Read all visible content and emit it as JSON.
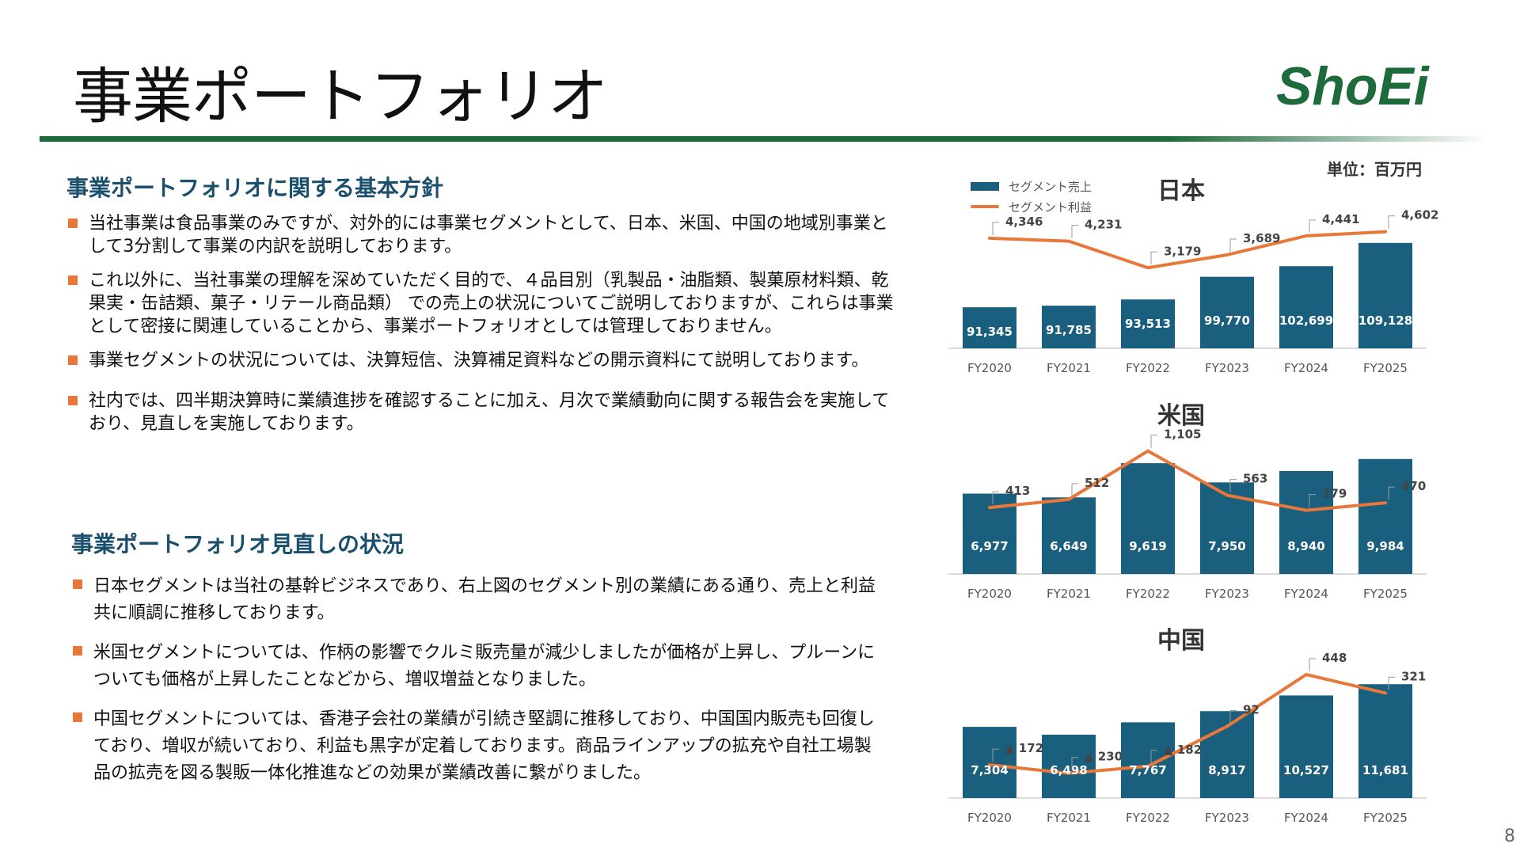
{
  "page": {
    "title": "事業ポートフォリオ",
    "logo_text": "ShoEi",
    "unit_label": "単位：百万円",
    "page_number": "8",
    "colors": {
      "accent_green": "#1d6b3a",
      "bar_blue": "#1b5f7e",
      "line_orange": "#e8773a",
      "heading_navy": "#1b4f6e"
    }
  },
  "section1": {
    "heading": "事業ポートフォリオに関する基本方針",
    "bullets": [
      "当社事業は食品事業のみですが、対外的には事業セグメントとして、日本、米国、中国の地域別事業として3分割して事業の内訳を説明しております。",
      "これ以外に、当社事業の理解を深めていただく目的で、４品目別（乳製品・油脂類、製菓原材料類、乾果実・缶詰類、菓子・リテール商品類） での売上の状況についてご説明しておりますが、これらは事業として密接に関連していることから、事業ポートフォリオとしては管理しておりません。",
      "事業セグメントの状況については、決算短信、決算補足資料などの開示資料にて説明しております。",
      "社内では、四半期決算時に業績進捗を確認することに加え、月次で業績動向に関する報告会を実施しており、見直しを実施しております。"
    ]
  },
  "section2": {
    "heading": "事業ポートフォリオ見直しの状況",
    "bullets": [
      "日本セグメントは当社の基幹ビジネスであり、右上図のセグメント別の業績にある通り、売上と利益共に順調に推移しております。",
      "米国セグメントについては、作柄の影響でクルミ販売量が減少しましたが価格が上昇し、プルーンについても価格が上昇したことなどから、増収増益となりました。",
      "中国セグメントについては、香港子会社の業績が引続き堅調に推移しており、中国国内販売も回復しており、増収が続いており、利益も黒字が定着しております。商品ラインアップの拡充や自社工場製品の拡売を図る製販一体化推進などの効果が業績改善に繋がりました。"
    ]
  },
  "legend": {
    "bar": "セグメント売上",
    "line": "セグメント利益"
  },
  "chart_data": [
    {
      "type": "bar",
      "title": "日本",
      "categories": [
        "FY2020",
        "FY2021",
        "FY2022",
        "FY2023",
        "FY2024",
        "FY2025"
      ],
      "series": [
        {
          "name": "セグメント売上",
          "type": "bar",
          "values": [
            91345,
            91785,
            93513,
            99770,
            102699,
            109128
          ],
          "labels": [
            "91,345",
            "91,785",
            "93,513",
            "99,770",
            "102,699",
            "109,128"
          ]
        },
        {
          "name": "セグメント利益",
          "type": "line",
          "values": [
            4346,
            4231,
            3179,
            3689,
            4441,
            4602
          ],
          "labels": [
            "4,346",
            "4,231",
            "3,179",
            "3,689",
            "4,441",
            "4,602"
          ]
        }
      ],
      "bar_axis_range": [
        80000,
        115000
      ],
      "line_axis_range": [
        0,
        5000
      ]
    },
    {
      "type": "bar",
      "title": "米国",
      "categories": [
        "FY2020",
        "FY2021",
        "FY2022",
        "FY2023",
        "FY2024",
        "FY2025"
      ],
      "series": [
        {
          "name": "セグメント売上",
          "type": "bar",
          "values": [
            6977,
            6649,
            9619,
            7950,
            8940,
            9984
          ],
          "labels": [
            "6,977",
            "6,649",
            "9,619",
            "7,950",
            "8,940",
            "9,984"
          ]
        },
        {
          "name": "セグメント利益",
          "type": "line",
          "values": [
            413,
            512,
            1105,
            563,
            379,
            470
          ],
          "labels": [
            "413",
            "512",
            "1,105",
            "563",
            "379",
            "470"
          ]
        }
      ],
      "bar_axis_range": [
        0,
        11000
      ],
      "line_axis_range": [
        -400,
        1150
      ]
    },
    {
      "type": "bar",
      "title": "中国",
      "categories": [
        "FY2020",
        "FY2021",
        "FY2022",
        "FY2023",
        "FY2024",
        "FY2025"
      ],
      "series": [
        {
          "name": "セグメント売上",
          "type": "bar",
          "values": [
            7304,
            6498,
            7767,
            8917,
            10527,
            11681
          ],
          "labels": [
            "7,304",
            "6,498",
            "7,767",
            "8,917",
            "10,527",
            "11,681"
          ]
        },
        {
          "name": "セグメント利益",
          "type": "line",
          "values": [
            -172,
            -230,
            -182,
            92,
            448,
            321
          ],
          "labels": [
            "▲ 172",
            "▲ 230",
            "▲ 182",
            "92",
            "448",
            "321"
          ]
        }
      ],
      "bar_axis_range": [
        0,
        13000
      ],
      "line_axis_range": [
        -400,
        470
      ]
    }
  ]
}
